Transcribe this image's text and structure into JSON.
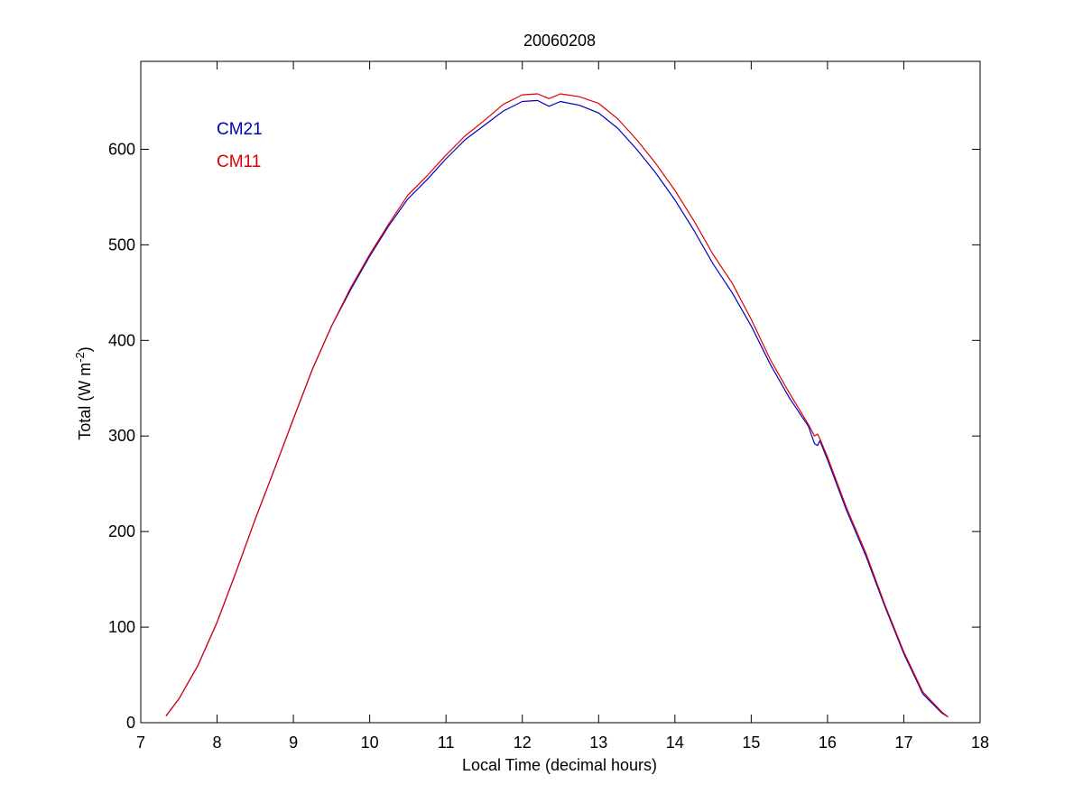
{
  "chart_data": {
    "type": "line",
    "title": "20060208",
    "xlabel": "Local Time (decimal hours)",
    "ylabel": {
      "base": "Total (W m",
      "superscript": "-2",
      "close": ")"
    },
    "xlim": [
      7,
      18
    ],
    "ylim": [
      0,
      692
    ],
    "xticks": [
      7,
      8,
      9,
      10,
      11,
      12,
      13,
      14,
      15,
      16,
      17,
      18
    ],
    "yticks": [
      0,
      100,
      200,
      300,
      400,
      500,
      600
    ],
    "grid": false,
    "legend": {
      "placement": "top-left"
    },
    "series": [
      {
        "name": "CM21",
        "color": "#0000c0",
        "x": [
          7.33,
          7.5,
          7.75,
          8.0,
          8.25,
          8.5,
          8.75,
          9.0,
          9.25,
          9.5,
          9.75,
          10.0,
          10.25,
          10.5,
          10.75,
          11.0,
          11.25,
          11.5,
          11.75,
          12.0,
          12.2,
          12.35,
          12.5,
          12.75,
          13.0,
          13.25,
          13.5,
          13.75,
          14.0,
          14.25,
          14.5,
          14.75,
          15.0,
          15.25,
          15.5,
          15.75,
          15.83,
          15.87,
          15.9,
          16.0,
          16.25,
          16.5,
          16.75,
          17.0,
          17.25,
          17.5,
          17.58
        ],
        "y": [
          7,
          25,
          60,
          105,
          158,
          213,
          265,
          318,
          370,
          415,
          453,
          488,
          520,
          548,
          568,
          590,
          610,
          625,
          640,
          650,
          651,
          645,
          650,
          646,
          638,
          622,
          600,
          575,
          547,
          515,
          480,
          450,
          415,
          375,
          340,
          310,
          292,
          290,
          295,
          275,
          222,
          175,
          122,
          72,
          30,
          10,
          6
        ]
      },
      {
        "name": "CM11",
        "color": "#e00000",
        "x": [
          7.33,
          7.5,
          7.75,
          8.0,
          8.25,
          8.5,
          8.75,
          9.0,
          9.25,
          9.5,
          9.75,
          10.0,
          10.25,
          10.5,
          10.75,
          11.0,
          11.25,
          11.5,
          11.75,
          12.0,
          12.2,
          12.35,
          12.5,
          12.75,
          13.0,
          13.25,
          13.5,
          13.75,
          14.0,
          14.25,
          14.5,
          14.75,
          15.0,
          15.25,
          15.5,
          15.75,
          15.83,
          15.87,
          15.9,
          16.0,
          16.25,
          16.5,
          16.75,
          17.0,
          17.25,
          17.5,
          17.58
        ],
        "y": [
          7,
          25,
          60,
          105,
          158,
          213,
          265,
          318,
          370,
          415,
          455,
          490,
          522,
          552,
          572,
          594,
          614,
          630,
          647,
          657,
          658,
          653,
          658,
          655,
          648,
          632,
          610,
          585,
          557,
          525,
          490,
          460,
          422,
          380,
          345,
          312,
          300,
          302,
          297,
          278,
          225,
          178,
          124,
          74,
          32,
          11,
          6
        ]
      }
    ]
  }
}
